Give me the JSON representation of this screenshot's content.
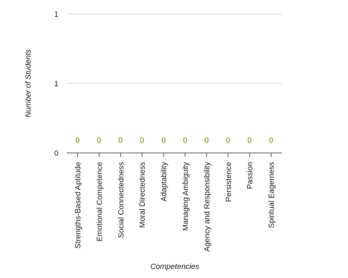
{
  "chart_data": {
    "type": "bar",
    "xlabel": "Competencies",
    "ylabel": "Number of Students",
    "categories": [
      "Strengths-Based Aptitude",
      "Emotional Competence",
      "Social Connectedness",
      "Moral Directedness",
      "Adaptability",
      "Managing Ambiguity",
      "Agency and Responsibility",
      "Persistence",
      "Passion",
      "Spiritual Eagerness"
    ],
    "values": [
      0,
      0,
      0,
      0,
      0,
      0,
      0,
      0,
      0,
      0
    ],
    "data_labels": [
      "0",
      "0",
      "0",
      "0",
      "0",
      "0",
      "0",
      "0",
      "0",
      "0"
    ],
    "ylim": [
      0,
      1
    ],
    "y_tick_values": [
      0,
      0.5,
      1
    ],
    "y_tick_labels": [
      "0",
      "1",
      "1"
    ],
    "grid": true,
    "legend": "none",
    "colors": {
      "data_label": "#8dc63f",
      "gridline": "#d9d9d9",
      "axis": "#555555",
      "text": "#222222"
    }
  }
}
